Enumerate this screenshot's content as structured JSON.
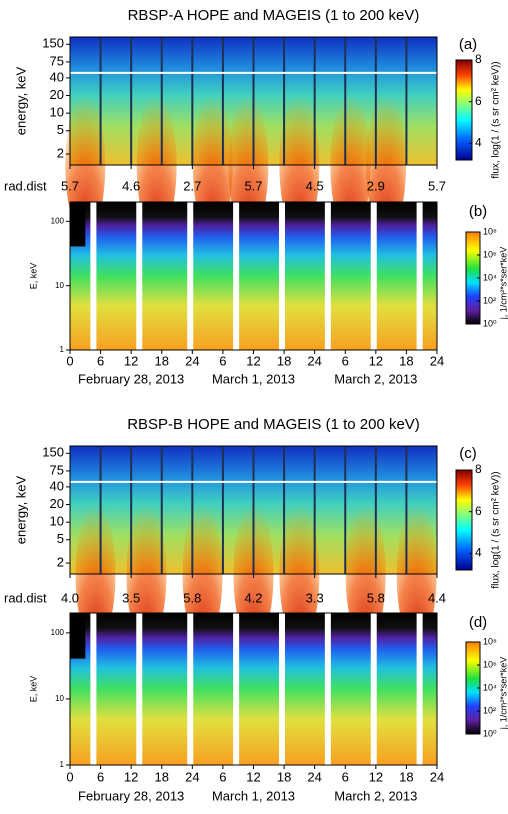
{
  "chart_data": [
    {
      "type": "spectrogram",
      "title": "RBSP-A  HOPE and MAGEIS (1 to 200 keV)",
      "panel_label": "(a)",
      "ylabel": "energy, keV",
      "yscale": "log",
      "ylim": [
        1.3,
        200
      ],
      "yticks": [
        2,
        5,
        10,
        20,
        40,
        75,
        150
      ],
      "xlim": [
        0,
        72
      ],
      "x_row": {
        "label": "rad.dist",
        "ticks": [
          {
            "value": 0,
            "label": "5.7"
          },
          {
            "value": 12,
            "label": "4.6"
          },
          {
            "value": 24,
            "label": "2.7"
          },
          {
            "value": 36,
            "label": "5.7"
          },
          {
            "value": 48,
            "label": "4.5"
          },
          {
            "value": 60,
            "label": "2.9"
          },
          {
            "value": 72,
            "label": "5.7"
          }
        ]
      },
      "colorbar": {
        "label": "flux, log(1 / (s sr cm² keV))",
        "scale": "linear",
        "lim": [
          3.2,
          8
        ],
        "ticks": [
          4,
          6,
          8
        ]
      }
    },
    {
      "type": "spectrogram",
      "panel_label": "(b)",
      "ylabel": "E, keV",
      "yscale": "log",
      "ylim": [
        1,
        200
      ],
      "yticks": [
        1,
        10,
        100
      ],
      "xlim": [
        0,
        72
      ],
      "xticks": [
        {
          "value": 0,
          "label": "0"
        },
        {
          "value": 6,
          "label": "6"
        },
        {
          "value": 12,
          "label": "12"
        },
        {
          "value": 18,
          "label": "18"
        },
        {
          "value": 24,
          "label": "24"
        },
        {
          "value": 30,
          "label": "6"
        },
        {
          "value": 36,
          "label": "12"
        },
        {
          "value": 42,
          "label": "18"
        },
        {
          "value": 48,
          "label": "24"
        },
        {
          "value": 54,
          "label": "6"
        },
        {
          "value": 60,
          "label": "12"
        },
        {
          "value": 66,
          "label": "18"
        },
        {
          "value": 72,
          "label": "24"
        }
      ],
      "dates": [
        "February 28, 2013",
        "March 1, 2013",
        "March 2, 2013"
      ],
      "colorbar": {
        "label": "j, 1/cm²*s*ser*keV",
        "scale": "log",
        "lim": [
          1,
          100000000
        ],
        "ticks": [
          {
            "value": 1,
            "label": "10⁰"
          },
          {
            "value": 100,
            "label": "10²"
          },
          {
            "value": 10000,
            "label": "10⁴"
          },
          {
            "value": 1000000,
            "label": "10⁶"
          },
          {
            "value": 100000000,
            "label": "10⁸"
          }
        ]
      }
    },
    {
      "type": "spectrogram",
      "title": "RBSP-B  HOPE and MAGEIS (1 to 200 keV)",
      "panel_label": "(c)",
      "ylabel": "energy, keV",
      "yscale": "log",
      "ylim": [
        1.3,
        200
      ],
      "yticks": [
        2,
        5,
        10,
        20,
        40,
        75,
        150
      ],
      "xlim": [
        0,
        72
      ],
      "x_row": {
        "label": "rad.dist",
        "ticks": [
          {
            "value": 0,
            "label": "4.0"
          },
          {
            "value": 12,
            "label": "3.5"
          },
          {
            "value": 24,
            "label": "5.8"
          },
          {
            "value": 36,
            "label": "4.2"
          },
          {
            "value": 48,
            "label": "3.3"
          },
          {
            "value": 60,
            "label": "5.8"
          },
          {
            "value": 72,
            "label": "4.4"
          }
        ]
      },
      "colorbar": {
        "label": "flux, log(1 / (s sr cm² keV))",
        "scale": "linear",
        "lim": [
          3.2,
          8
        ],
        "ticks": [
          4,
          6,
          8
        ]
      }
    },
    {
      "type": "spectrogram",
      "panel_label": "(d)",
      "ylabel": "E, keV",
      "yscale": "log",
      "ylim": [
        1,
        200
      ],
      "yticks": [
        1,
        10,
        100
      ],
      "xlim": [
        0,
        72
      ],
      "xticks": [
        {
          "value": 0,
          "label": "0"
        },
        {
          "value": 6,
          "label": "6"
        },
        {
          "value": 12,
          "label": "12"
        },
        {
          "value": 18,
          "label": "18"
        },
        {
          "value": 24,
          "label": "24"
        },
        {
          "value": 30,
          "label": "6"
        },
        {
          "value": 36,
          "label": "12"
        },
        {
          "value": 42,
          "label": "18"
        },
        {
          "value": 48,
          "label": "24"
        },
        {
          "value": 54,
          "label": "6"
        },
        {
          "value": 60,
          "label": "12"
        },
        {
          "value": 66,
          "label": "18"
        },
        {
          "value": 72,
          "label": "24"
        }
      ],
      "dates": [
        "February 28, 2013",
        "March 1, 2013",
        "March 2, 2013"
      ],
      "colorbar": {
        "label": "j, 1/cm²*s*ser*keV",
        "scale": "log",
        "lim": [
          1,
          100000000
        ],
        "ticks": [
          {
            "value": 1,
            "label": "10⁰"
          },
          {
            "value": 100,
            "label": "10²"
          },
          {
            "value": 10000,
            "label": "10⁴"
          },
          {
            "value": 1000000,
            "label": "10⁶"
          },
          {
            "value": 100000000,
            "label": "10⁸"
          }
        ]
      }
    }
  ]
}
